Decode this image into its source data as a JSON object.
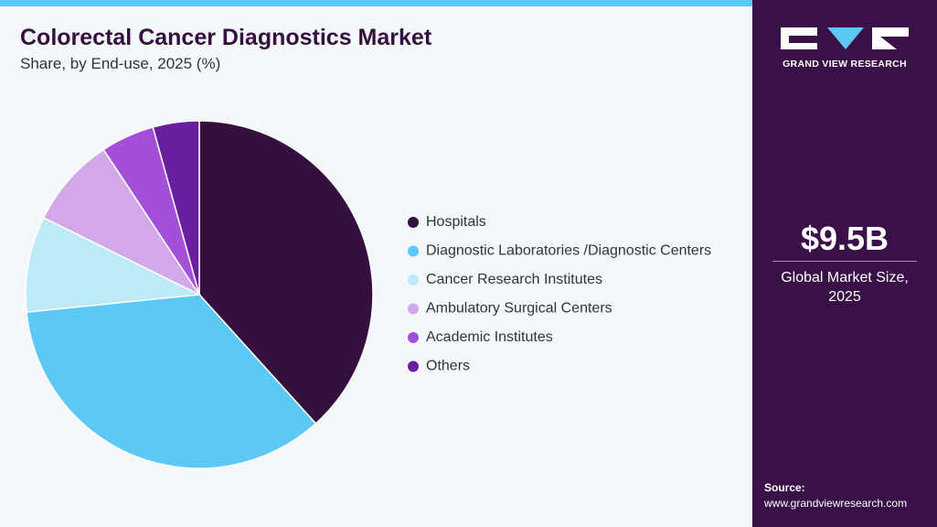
{
  "chart_data": {
    "type": "pie",
    "title": "Colorectal Cancer Diagnostics Market",
    "subtitle": "Share, by End-use, 2025 (%)",
    "categories": [
      "Hospitals",
      "Diagnostic Laboratories /Diagnostic Centers",
      "Cancer Research Institutes",
      "Ambulatory Surgical Centers",
      "Academic Institutes",
      "Others"
    ],
    "values": [
      38.3,
      35.1,
      8.9,
      8.4,
      5.0,
      4.3
    ],
    "colors": [
      "#35103f",
      "#5bc8f5",
      "#bde9f9",
      "#d3a8e8",
      "#a34fd8",
      "#6a1fa0"
    ],
    "legend": "right"
  },
  "panel": {
    "brand": "GRAND VIEW RESEARCH",
    "market_size": "$9.5B",
    "market_label": "Global Market Size, 2025",
    "source_label": "Source:",
    "source_url": "www.grandviewresearch.com"
  }
}
